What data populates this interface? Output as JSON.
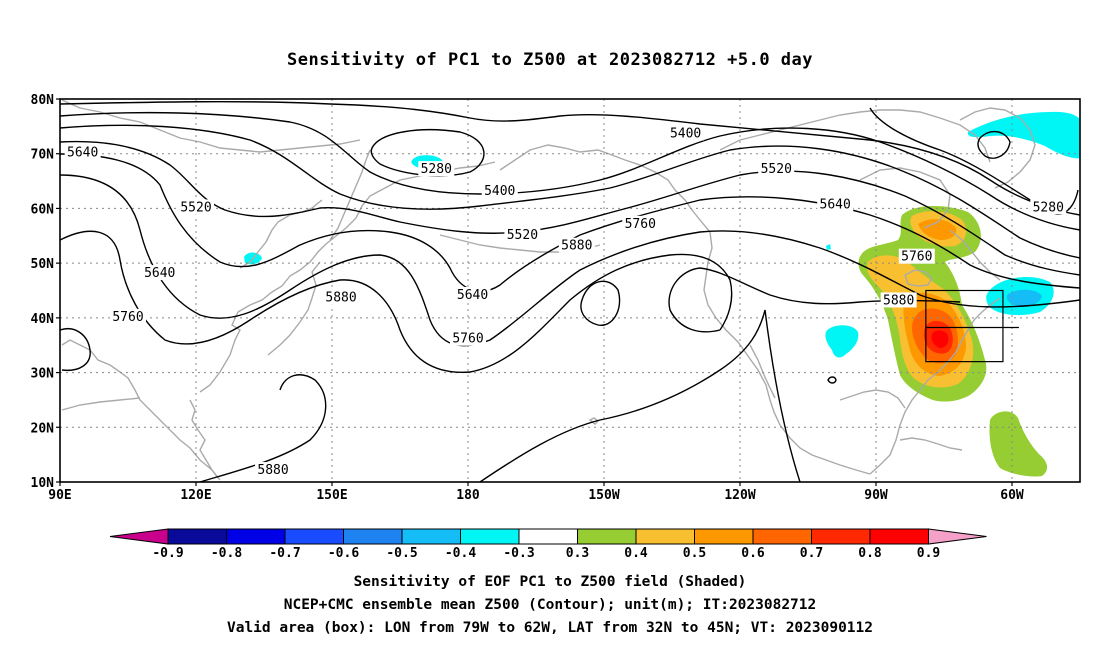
{
  "title": "Sensitivity of PC1 to Z500 at 2023082712 +5.0 day",
  "lat_ticks": [
    {
      "value": 80,
      "label": "80N"
    },
    {
      "value": 70,
      "label": "70N"
    },
    {
      "value": 60,
      "label": "60N"
    },
    {
      "value": 50,
      "label": "50N"
    },
    {
      "value": 40,
      "label": "40N"
    },
    {
      "value": 30,
      "label": "30N"
    },
    {
      "value": 20,
      "label": "20N"
    },
    {
      "value": 10,
      "label": "10N"
    }
  ],
  "lon_ticks": [
    {
      "value": 90,
      "label": "90E"
    },
    {
      "value": 120,
      "label": "120E"
    },
    {
      "value": 150,
      "label": "150E"
    },
    {
      "value": 180,
      "label": "180"
    },
    {
      "value": 210,
      "label": "150W"
    },
    {
      "value": 240,
      "label": "120W"
    },
    {
      "value": 270,
      "label": "90W"
    },
    {
      "value": 300,
      "label": "60W"
    }
  ],
  "map_extent": {
    "lon_min": 90,
    "lon_max": 315,
    "lat_min": 10,
    "lat_max": 80
  },
  "colorbar": {
    "levels": [
      "-0.9",
      "-0.8",
      "-0.7",
      "-0.6",
      "-0.5",
      "-0.4",
      "-0.3",
      "0.3",
      "0.4",
      "0.5",
      "0.6",
      "0.7",
      "0.8",
      "0.9"
    ],
    "left_arrow_color": "#c8008c",
    "right_arrow_color": "#f5a0c8",
    "colors": [
      "#0a0a9a",
      "#0000e6",
      "#1a4cff",
      "#1e82f0",
      "#14bdf5",
      "#00f5f5",
      "#ffffff",
      "#96cd32",
      "#f8c030",
      "#fd9800",
      "#ff6600",
      "#ff2800",
      "#ff0000"
    ]
  },
  "contour_labels": [
    {
      "text": "5640",
      "lon": 95,
      "lat": 70
    },
    {
      "text": "5280",
      "lon": 173,
      "lat": 67
    },
    {
      "text": "5400",
      "lon": 228,
      "lat": 73.5
    },
    {
      "text": "5400",
      "lon": 187,
      "lat": 63
    },
    {
      "text": "5520",
      "lon": 248,
      "lat": 67
    },
    {
      "text": "5520",
      "lon": 120,
      "lat": 60
    },
    {
      "text": "5520",
      "lon": 192,
      "lat": 55
    },
    {
      "text": "5640",
      "lon": 261,
      "lat": 60.5
    },
    {
      "text": "5280",
      "lon": 308,
      "lat": 60
    },
    {
      "text": "5760",
      "lon": 218,
      "lat": 57
    },
    {
      "text": "5880",
      "lon": 204,
      "lat": 53
    },
    {
      "text": "5640",
      "lon": 112,
      "lat": 48
    },
    {
      "text": "5640",
      "lon": 181,
      "lat": 44
    },
    {
      "text": "5880",
      "lon": 152,
      "lat": 43.5
    },
    {
      "text": "5760",
      "lon": 105,
      "lat": 40
    },
    {
      "text": "5760",
      "lon": 180,
      "lat": 36
    },
    {
      "text": "5760",
      "lon": 279,
      "lat": 51
    },
    {
      "text": "5880",
      "lon": 275,
      "lat": 43
    },
    {
      "text": "5880",
      "lon": 137,
      "lat": 12
    }
  ],
  "valid_box": {
    "lon_min": 281,
    "lon_max": 298,
    "lat_min": 32,
    "lat_max": 45
  },
  "captions": [
    "Sensitivity of EOF PC1 to Z500 field (Shaded)",
    "NCEP+CMC ensemble mean Z500 (Contour); unit(m); IT:2023082712",
    "Valid area (box): LON from 79W to 62W, LAT from 32N to 45N; VT: 2023090112"
  ]
}
